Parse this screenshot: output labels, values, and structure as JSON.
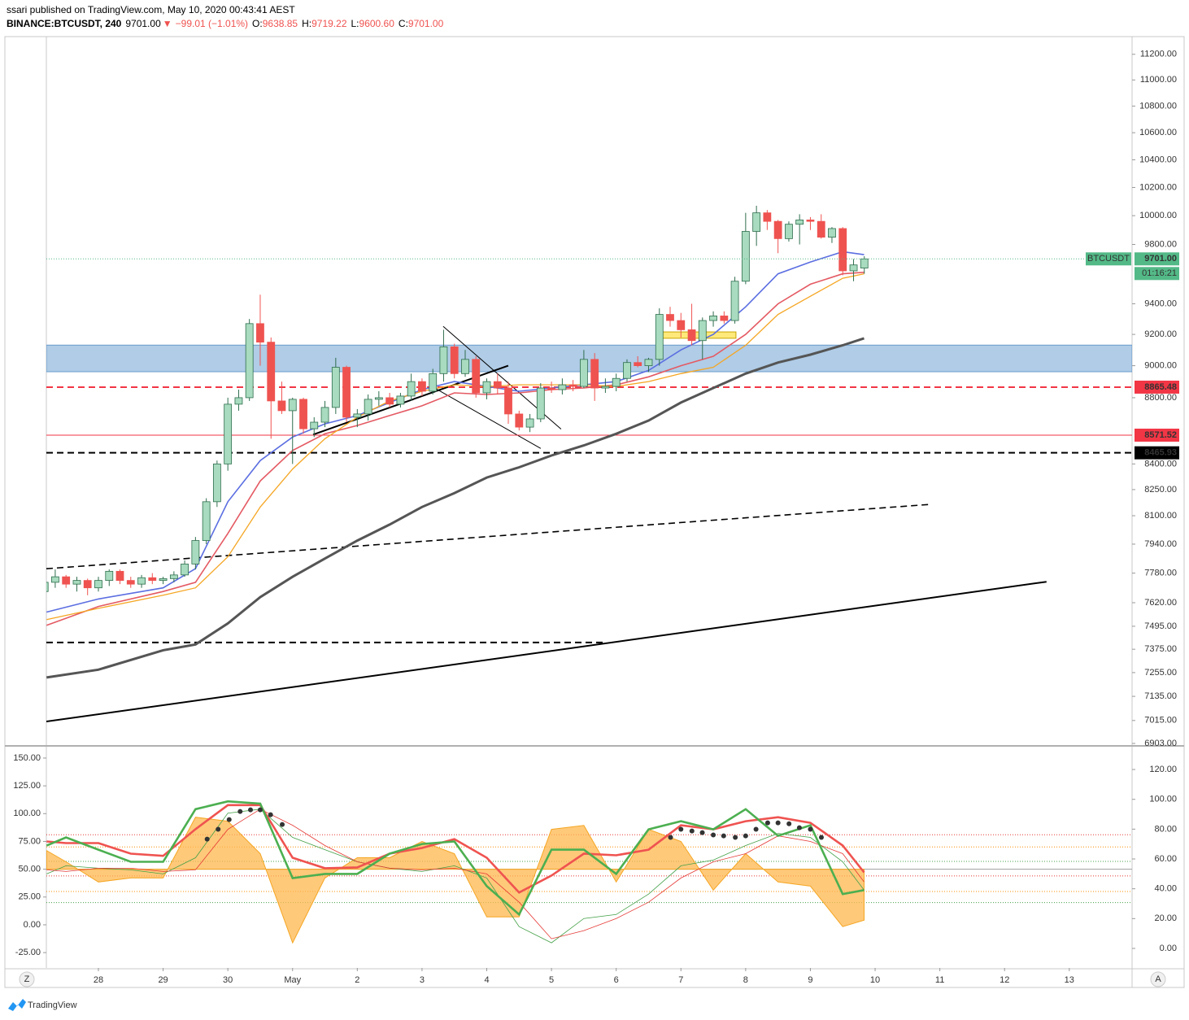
{
  "header": {
    "publisher": "ssari published on TradingView.com, May 10, 2020 00:43:41 AEST",
    "symbol": "BINANCE:BTCUSDT, 240",
    "last": "9701.00",
    "arrow": "▼",
    "change": "−99.01 (−1.01%)",
    "ohlc": [
      {
        "label": "O:",
        "value": "9638.85"
      },
      {
        "label": "H:",
        "value": "9719.22"
      },
      {
        "label": "L:",
        "value": "9600.60"
      },
      {
        "label": "C:",
        "value": "9701.00"
      }
    ]
  },
  "footer": {
    "logo": "TradingView",
    "left_button": "Z",
    "right_button": "A"
  },
  "chart_data": {
    "type": "candlestick",
    "log": true,
    "grid": false,
    "xlim": [
      27.196,
      43.97
    ],
    "ylim": [
      6895,
      11340
    ],
    "xticks": [
      28,
      29,
      30,
      {
        "value": 31,
        "label": "May"
      },
      {
        "value": 32,
        "label": "2"
      },
      {
        "value": 33,
        "label": "3"
      },
      {
        "value": 34,
        "label": "4"
      },
      {
        "value": 35,
        "label": "5"
      },
      {
        "value": 36,
        "label": "6"
      },
      {
        "value": 37,
        "label": "7"
      },
      {
        "value": 38,
        "label": "8"
      },
      {
        "value": 39,
        "label": "9"
      },
      {
        "value": 40,
        "label": "10"
      },
      {
        "value": 41,
        "label": "11"
      },
      {
        "value": 42,
        "label": "12"
      },
      {
        "value": 43,
        "label": "13"
      }
    ],
    "yticks": [
      {
        "value": 11200,
        "label": "11200.00"
      },
      {
        "value": 11000,
        "label": "11000.00"
      },
      {
        "value": 10800,
        "label": "10800.00"
      },
      {
        "value": 10600,
        "label": "10600.00"
      },
      {
        "value": 10400,
        "label": "10400.00"
      },
      {
        "value": 10200,
        "label": "10200.00"
      },
      {
        "value": 10000,
        "label": "10000.00"
      },
      {
        "value": 9800,
        "label": "9800.00"
      },
      {
        "value": 9400,
        "label": "9400.00"
      },
      {
        "value": 9200,
        "label": "9200.00"
      },
      {
        "value": 9000,
        "label": "9000.00"
      },
      {
        "value": 8800,
        "label": "8800.00"
      },
      {
        "value": 8400,
        "label": "8400.00"
      },
      {
        "value": 8250,
        "label": "8250.00"
      },
      {
        "value": 8100,
        "label": "8100.00"
      },
      {
        "value": 7940,
        "label": "7940.00"
      },
      {
        "value": 7780,
        "label": "7780.00"
      },
      {
        "value": 7620,
        "label": "7620.00"
      },
      {
        "value": 7495,
        "label": "7495.00"
      },
      {
        "value": 7375,
        "label": "7375.00"
      },
      {
        "value": 7255,
        "label": "7255.00"
      },
      {
        "value": 7135,
        "label": "7135.00"
      },
      {
        "value": 7015,
        "label": "7015.00"
      },
      {
        "value": 6903,
        "label": "6903.00"
      }
    ],
    "up_color": "#a8dbbf",
    "up_border": "#2f6e4e",
    "down_color": "#ef5350",
    "candles": {
      "x": [
        27.167,
        27.333,
        27.5,
        27.667,
        27.833,
        28,
        28.167,
        28.333,
        28.5,
        28.667,
        28.833,
        29,
        29.167,
        29.333,
        29.5,
        29.667,
        29.833,
        30,
        30.167,
        30.333,
        30.5,
        30.667,
        30.833,
        31,
        31.167,
        31.333,
        31.5,
        31.667,
        31.833,
        32,
        32.167,
        32.333,
        32.5,
        32.667,
        32.833,
        33,
        33.167,
        33.333,
        33.5,
        33.667,
        33.833,
        34,
        34.167,
        34.333,
        34.5,
        34.667,
        34.833,
        35,
        35.167,
        35.333,
        35.5,
        35.667,
        35.833,
        36,
        36.167,
        36.333,
        36.5,
        36.667,
        36.833,
        37,
        37.167,
        37.333,
        37.5,
        37.667,
        37.833,
        38,
        38.167,
        38.333,
        38.5,
        38.667,
        38.833,
        39,
        39.167,
        39.333,
        39.5,
        39.667,
        39.833
      ],
      "open": [
        7680,
        7730,
        7760,
        7720,
        7740,
        7700,
        7740,
        7790,
        7740,
        7720,
        7755,
        7740,
        7750,
        7770,
        7830,
        7960,
        8180,
        8400,
        8760,
        8800,
        9270,
        9150,
        8780,
        8720,
        8790,
        8610,
        8650,
        8740,
        8990,
        8680,
        8700,
        8790,
        8800,
        8760,
        8810,
        8900,
        8840,
        8950,
        9120,
        8950,
        9040,
        8830,
        8900,
        8860,
        8700,
        8620,
        8670,
        8860,
        8850,
        8880,
        8870,
        9040,
        8860,
        8870,
        8920,
        9020,
        9000,
        9040,
        9330,
        9290,
        9230,
        9160,
        9290,
        9320,
        9290,
        9550,
        9890,
        10020,
        9960,
        9840,
        9940,
        9970,
        9960,
        9850,
        9910,
        9620,
        9638.85
      ],
      "high": [
        7760,
        7800,
        7770,
        7760,
        7750,
        7760,
        7800,
        7800,
        7760,
        7770,
        7780,
        7760,
        7790,
        7850,
        7980,
        8200,
        8420,
        8800,
        8850,
        9300,
        9460,
        9180,
        8900,
        8800,
        8800,
        8680,
        8780,
        9050,
        9000,
        8730,
        8820,
        8840,
        8830,
        8830,
        8950,
        8920,
        8980,
        9230,
        9140,
        9100,
        9060,
        8920,
        8950,
        8900,
        8720,
        8700,
        8890,
        8900,
        8920,
        8910,
        9100,
        9080,
        8920,
        8950,
        9040,
        9060,
        9050,
        9370,
        9380,
        9340,
        9400,
        9310,
        9350,
        9350,
        9580,
        10020,
        10070,
        10040,
        9970,
        9960,
        10010,
        9990,
        10010,
        9920,
        9920,
        9700,
        9719.22
      ],
      "low": [
        7650,
        7700,
        7700,
        7680,
        7660,
        7680,
        7710,
        7720,
        7700,
        7700,
        7720,
        7720,
        7730,
        7760,
        7800,
        7940,
        8150,
        8360,
        8720,
        8780,
        9000,
        8550,
        8700,
        8400,
        8580,
        8560,
        8620,
        8700,
        8650,
        8620,
        8660,
        8750,
        8740,
        8740,
        8780,
        8810,
        8820,
        8900,
        8920,
        8930,
        8800,
        8790,
        8820,
        8640,
        8600,
        8590,
        8650,
        8830,
        8820,
        8840,
        8860,
        8780,
        8830,
        8840,
        8900,
        8990,
        8960,
        9000,
        9250,
        9180,
        9130,
        9040,
        9250,
        9270,
        9270,
        9530,
        9790,
        9900,
        9740,
        9820,
        9800,
        9900,
        9840,
        9810,
        9590,
        9550,
        9600.6
      ],
      "close": [
        7730,
        7760,
        7720,
        7740,
        7700,
        7740,
        7790,
        7740,
        7720,
        7755,
        7740,
        7750,
        7770,
        7830,
        7960,
        8180,
        8400,
        8760,
        8800,
        9270,
        9150,
        8780,
        8720,
        8790,
        8610,
        8650,
        8740,
        8990,
        8680,
        8700,
        8790,
        8800,
        8760,
        8810,
        8900,
        8840,
        8950,
        9120,
        8950,
        9040,
        8830,
        8900,
        8860,
        8700,
        8620,
        8670,
        8860,
        8850,
        8880,
        8870,
        9040,
        8860,
        8870,
        8920,
        9020,
        9000,
        9040,
        9330,
        9290,
        9230,
        9160,
        9290,
        9320,
        9290,
        9550,
        9890,
        10020,
        9960,
        9840,
        9940,
        9970,
        9960,
        9850,
        9910,
        9620,
        9660,
        9701.0
      ]
    },
    "ma_x": [
      27.2,
      28,
      29,
      29.5,
      30,
      30.5,
      31,
      31.5,
      32,
      32.5,
      33,
      33.5,
      34,
      34.5,
      35,
      35.5,
      36,
      36.5,
      37,
      37.5,
      38,
      38.5,
      39,
      39.5,
      39.83
    ],
    "moving_averages": [
      {
        "color": "#5b6ee1",
        "width": 1.6,
        "values": [
          7570,
          7640,
          7700,
          7805,
          8180,
          8420,
          8560,
          8640,
          8690,
          8770,
          8850,
          8900,
          8870,
          8840,
          8860,
          8880,
          8900,
          8970,
          9100,
          9200,
          9380,
          9600,
          9680,
          9750,
          9730
        ]
      },
      {
        "color": "#e45a63",
        "width": 1.6,
        "values": [
          7500,
          7600,
          7680,
          7730,
          8000,
          8300,
          8480,
          8580,
          8630,
          8690,
          8750,
          8830,
          8820,
          8830,
          8850,
          8860,
          8880,
          8930,
          9000,
          9060,
          9200,
          9400,
          9530,
          9600,
          9610
        ]
      },
      {
        "color": "#f5a623",
        "width": 1.3,
        "values": [
          7530,
          7590,
          7660,
          7700,
          7870,
          8150,
          8370,
          8550,
          8680,
          8780,
          8840,
          8880,
          8870,
          8880,
          8880,
          8880,
          8870,
          8900,
          8950,
          8990,
          9130,
          9330,
          9450,
          9570,
          9600
        ]
      },
      {
        "color": "#555555",
        "width": 3,
        "values": [
          7230,
          7270,
          7370,
          7400,
          7510,
          7650,
          7760,
          7860,
          7960,
          8050,
          8150,
          8230,
          8320,
          8380,
          8450,
          8510,
          8580,
          8660,
          8770,
          8860,
          8950,
          9020,
          9070,
          9130,
          9175
        ]
      }
    ],
    "zone": {
      "low": 8962,
      "high": 9131,
      "color": "#b0cce6",
      "border": "#6a9ccc"
    },
    "levels": [
      {
        "value": 8865.48,
        "label": "8865.48",
        "color": "#f23645",
        "style": "dashed"
      },
      {
        "value": 8571.52,
        "label": "8571.52",
        "color": "#f23645",
        "style": "solid"
      },
      {
        "value": 8465.93,
        "label": "8465.93",
        "color": "#000000",
        "style": "dashed"
      }
    ],
    "drawings": [
      {
        "color": "#000000",
        "width": 2,
        "style": "solid",
        "x": [
          27.196,
          42.648
        ],
        "y": [
          7010,
          7733
        ]
      },
      {
        "color": "#000000",
        "width": 1.6,
        "style": "dashed",
        "x": [
          27.196,
          40.827
        ],
        "y": [
          7804,
          8164
        ]
      },
      {
        "color": "#000000",
        "width": 2,
        "style": "dashed",
        "x": [
          27.196,
          35.84
        ],
        "y": [
          7410,
          7410
        ]
      },
      {
        "color": "#000000",
        "width": 2,
        "style": "solid",
        "x": [
          31.317,
          34.332
        ],
        "y": [
          8575,
          9000
        ]
      },
      {
        "color": "#000000",
        "width": 1,
        "style": "solid",
        "x": [
          33.327,
          35.148
        ],
        "y": [
          9252,
          8608
        ]
      },
      {
        "color": "#000000",
        "width": 1,
        "style": "solid",
        "x": [
          33.138,
          34.834
        ],
        "y": [
          8873,
          8492
        ]
      }
    ],
    "box": {
      "x": [
        36.67,
        37.85
      ],
      "y": [
        9175,
        9216
      ],
      "color": "#ffe97a",
      "border": "#c9a400"
    },
    "current": {
      "name": "BTCUSDT",
      "value": 9701.0,
      "label": "9701.00",
      "countdown": "01:16:21",
      "color": "#53b987"
    },
    "indicator": {
      "ylim": [
        -38.8,
        160.2
      ],
      "y2lim": [
        -13.1,
        135.3
      ],
      "yticks": [
        {
          "value": 150,
          "label": "150.00"
        },
        {
          "value": 125,
          "label": "125.00"
        },
        {
          "value": 100,
          "label": "100.00"
        },
        {
          "value": 75,
          "label": "75.00"
        },
        {
          "value": 50,
          "label": "50.00"
        },
        {
          "value": 25,
          "label": "25.00"
        },
        {
          "value": 0,
          "label": "0.00"
        },
        {
          "value": -25,
          "label": "-25.00"
        }
      ],
      "y2ticks": [
        {
          "value": 120,
          "label": "120.00"
        },
        {
          "value": 100,
          "label": "100.00"
        },
        {
          "value": 80,
          "label": "80.00"
        },
        {
          "value": 60,
          "label": "60.00"
        },
        {
          "value": 40,
          "label": "40.00"
        },
        {
          "value": 20,
          "label": "20.00"
        },
        {
          "value": 0,
          "label": "0.00"
        }
      ],
      "levels": [
        {
          "value": 81,
          "color": "#e53935",
          "style": "dotted"
        },
        {
          "value": 70,
          "color": "#fb8c00",
          "style": "dotted"
        },
        {
          "value": 57,
          "color": "#43a047",
          "style": "dotted"
        },
        {
          "value": 50,
          "color": "#9e9e9e",
          "style": "solid"
        },
        {
          "value": 44,
          "color": "#e53935",
          "style": "dotted"
        },
        {
          "value": 30,
          "color": "#fb8c00",
          "style": "dotted"
        },
        {
          "value": 20,
          "color": "#43a047",
          "style": "dotted"
        }
      ],
      "x": [
        27.2,
        27.5,
        28,
        28.5,
        29,
        29.5,
        30,
        30.5,
        31,
        31.5,
        32,
        32.5,
        33,
        33.5,
        34,
        34.5,
        35,
        35.5,
        36,
        36.5,
        37,
        37.5,
        38,
        38.5,
        39,
        39.5,
        39.83
      ],
      "area": {
        "color": "#ffb74d",
        "values": [
          66.8,
          56.7,
          38.5,
          42.1,
          42.1,
          96.8,
          93.2,
          64,
          -16.2,
          42.1,
          60.3,
          60.3,
          75,
          64,
          7.1,
          7.1,
          85.9,
          89.4,
          38.5,
          85.9,
          75,
          31.2,
          64,
          38.5,
          34.8,
          -1.6,
          4.2
        ]
      },
      "series": [
        {
          "color": "#43a047",
          "width": 0.8,
          "values": [
            45.8,
            53.1,
            50.9,
            49.4,
            45.8,
            60.3,
            100.4,
            104,
            78.6,
            67.6,
            56.7,
            50.9,
            48,
            53.1,
            42.1,
            -1.6,
            -16.2,
            5.7,
            9.3,
            27.6,
            53.1,
            58.2,
            71.3,
            82.2,
            78.6,
            56.7,
            31.2
          ]
        },
        {
          "color": "#e53935",
          "width": 0.8,
          "values": [
            49.4,
            48,
            50.9,
            50.9,
            48,
            49.4,
            85.9,
            104,
            89.5,
            71.3,
            56.7,
            50.9,
            49.4,
            50.9,
            45.8,
            20.3,
            -12.5,
            -5.2,
            5.7,
            20.3,
            42.1,
            56.7,
            64,
            80,
            75,
            64,
            38.5
          ]
        },
        {
          "color": "#ef5350",
          "width": 2.6,
          "values": [
            75,
            73.5,
            73.5,
            64,
            62,
            86,
            107.7,
            107.7,
            60.3,
            50.9,
            51.6,
            64,
            69.1,
            77.1,
            60.3,
            29,
            44.3,
            64,
            62.5,
            67.6,
            89.5,
            85.9,
            93.2,
            96.8,
            91.7,
            71.3,
            47.2
          ]
        },
        {
          "color": "#4caf50",
          "width": 2.6,
          "values": [
            71.3,
            78.6,
            67.6,
            56.7,
            56.7,
            104,
            111,
            109,
            42,
            45.8,
            45.8,
            64,
            72.7,
            75,
            34.8,
            9.3,
            67.6,
            67.6,
            45.8,
            85.9,
            93.2,
            85.9,
            104,
            80,
            89.5,
            27.6,
            31.2
          ]
        }
      ],
      "dots": {
        "color": "#333333",
        "x": [
          29.68,
          29.85,
          30.02,
          30.19,
          30.35,
          30.5,
          30.66,
          30.84,
          36.84,
          37,
          37.17,
          37.33,
          37.5,
          37.66,
          37.84,
          38,
          38.16,
          38.34,
          38.5,
          38.67,
          38.83,
          39,
          39.17
        ],
        "values": [
          77.1,
          85.9,
          94.6,
          101.9,
          103.4,
          103.4,
          99,
          90.2,
          78.6,
          85.9,
          84.4,
          82.9,
          80.8,
          80,
          78.6,
          80,
          85.9,
          91.7,
          91.7,
          90.9,
          87.3,
          85.9,
          78.6
        ]
      }
    }
  }
}
